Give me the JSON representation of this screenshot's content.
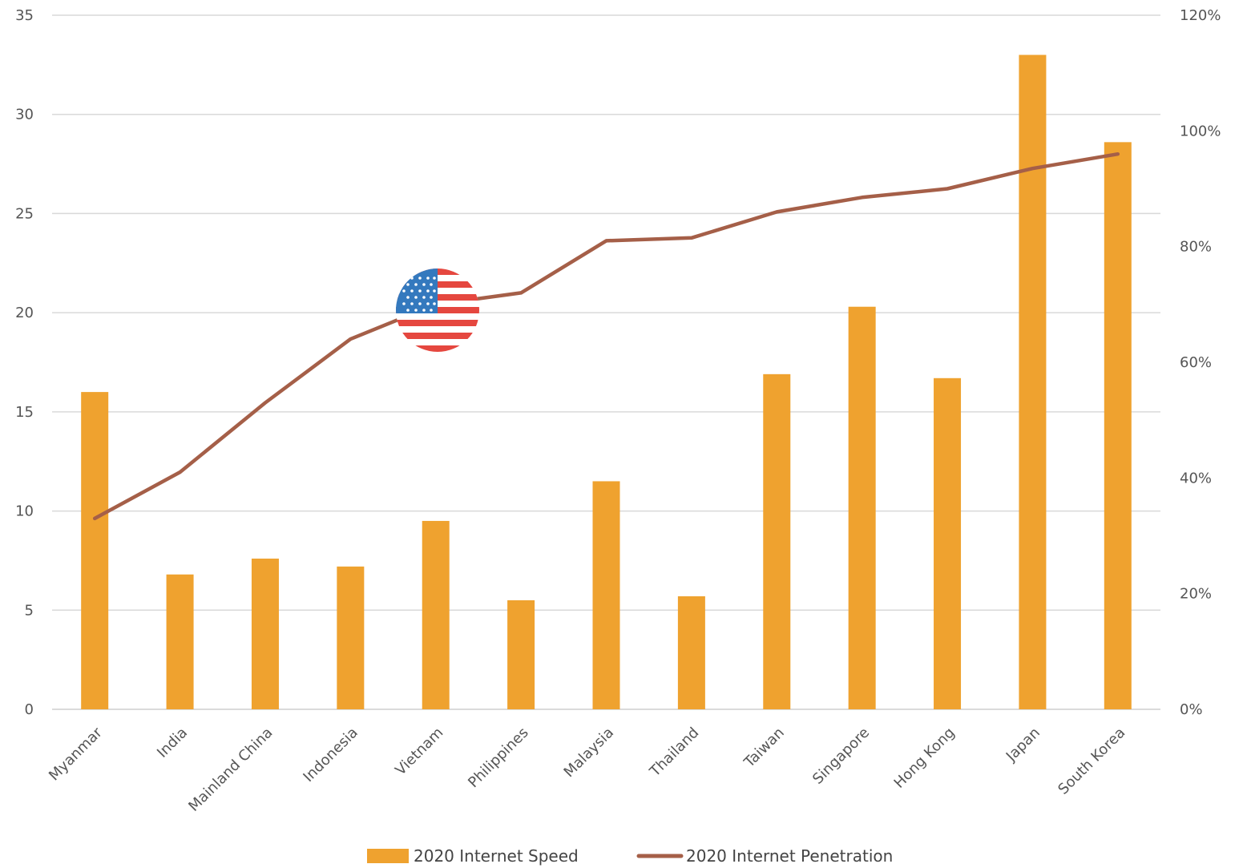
{
  "chart_data": {
    "type": "bar",
    "categories": [
      "Myanmar",
      "India",
      "Mainland China",
      "Indonesia",
      "Vietnam",
      "Philippines",
      "Malaysia",
      "Thailand",
      "Taiwan",
      "Singapore",
      "Hong Kong",
      "Japan",
      "South Korea"
    ],
    "series": [
      {
        "name": "2020 Internet Speed",
        "type": "bar",
        "axis": "left",
        "color": "#EFA22F",
        "values": [
          16.0,
          6.8,
          7.6,
          7.2,
          9.5,
          5.5,
          11.5,
          5.7,
          16.9,
          20.3,
          16.7,
          33.0,
          28.6
        ]
      },
      {
        "name": "2020 Internet Penetration",
        "type": "line",
        "axis": "right",
        "color": "#A55F48",
        "values": [
          0.33,
          0.41,
          0.53,
          0.64,
          0.7,
          0.72,
          0.81,
          0.815,
          0.86,
          0.885,
          0.9,
          0.935,
          0.96
        ]
      }
    ],
    "y_left": {
      "lim": [
        0,
        35
      ],
      "ticks": [
        "0",
        "5",
        "10",
        "15",
        "20",
        "25",
        "30",
        "35"
      ]
    },
    "y_right": {
      "lim": [
        0,
        1.2
      ],
      "ticks": [
        "0%",
        "20%",
        "40%",
        "60%",
        "80%",
        "100%",
        "120%"
      ]
    },
    "grid": true,
    "legend_position": "bottom",
    "annotation_icon": "us-flag-icon"
  }
}
